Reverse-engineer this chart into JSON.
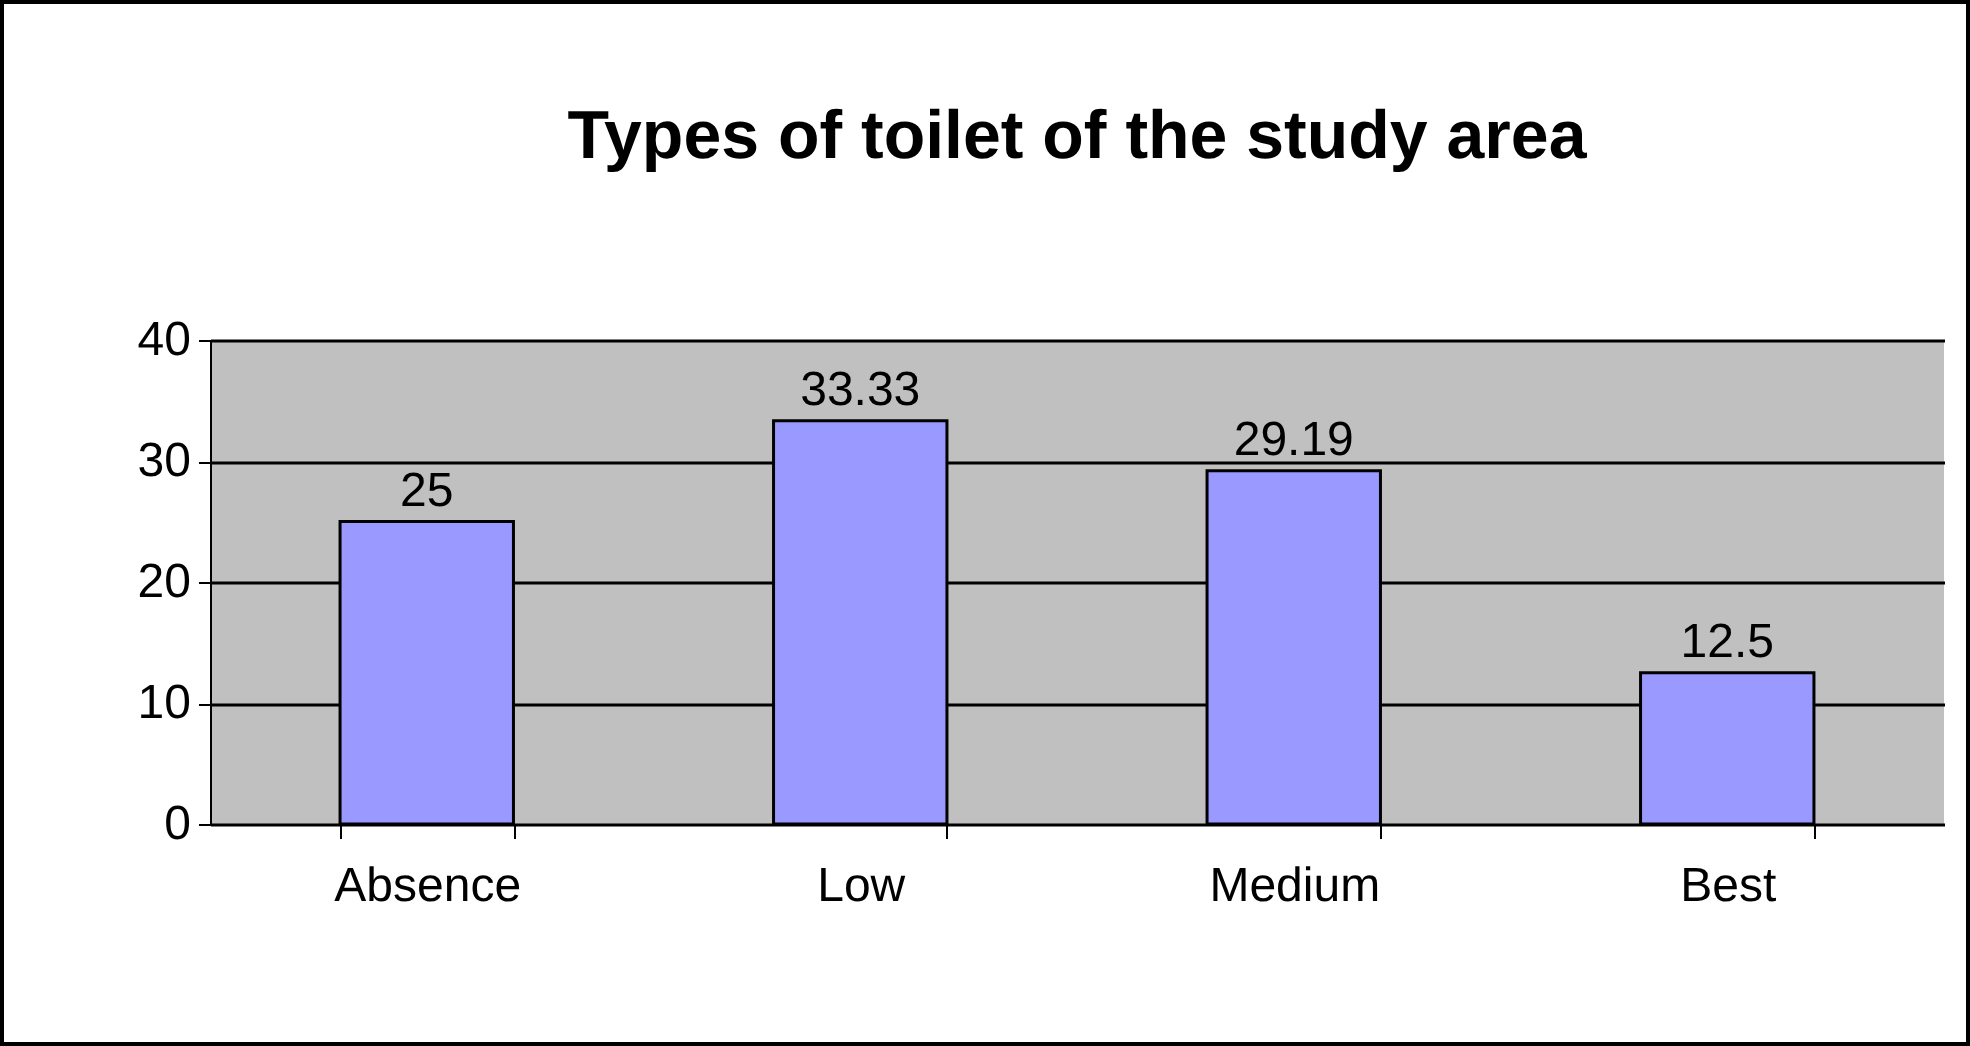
{
  "chart_data": {
    "type": "bar",
    "title": "Types of toilet of the study area",
    "categories": [
      "Absence",
      "Low",
      "Medium",
      "Best"
    ],
    "values": [
      25,
      33.33,
      29.19,
      12.5
    ],
    "color": "#9999ff",
    "ylim": [
      0,
      40
    ],
    "yticks": [
      0,
      10,
      20,
      30,
      40
    ],
    "grid": true,
    "data_labels": true
  }
}
